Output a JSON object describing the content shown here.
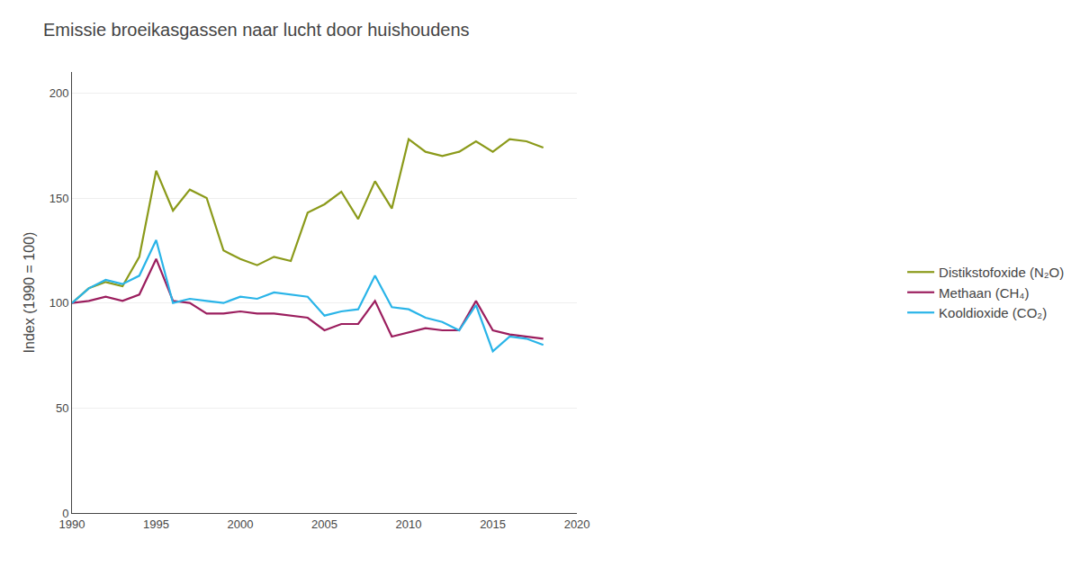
{
  "chart_data": {
    "type": "line",
    "title": "Emissie broeikasgassen naar lucht door huishoudens",
    "ylabel": "Index (1990 = 100)",
    "x": [
      1990,
      1991,
      1992,
      1993,
      1994,
      1995,
      1996,
      1997,
      1998,
      1999,
      2000,
      2001,
      2002,
      2003,
      2004,
      2005,
      2006,
      2007,
      2008,
      2009,
      2010,
      2011,
      2012,
      2013,
      2014,
      2015,
      2016,
      2017,
      2018
    ],
    "series": [
      {
        "name": "Distikstofoxide (N₂O)",
        "color": "#8b9a1a",
        "values": [
          100,
          107,
          110,
          108,
          122,
          163,
          144,
          154,
          150,
          125,
          121,
          118,
          122,
          120,
          143,
          147,
          153,
          140,
          158,
          145,
          178,
          172,
          170,
          172,
          177,
          172,
          178,
          177,
          174
        ]
      },
      {
        "name": "Methaan (CH₄)",
        "color": "#9b1e5e",
        "values": [
          100,
          101,
          103,
          101,
          104,
          121,
          101,
          100,
          95,
          95,
          96,
          95,
          95,
          94,
          93,
          87,
          90,
          90,
          101,
          84,
          86,
          88,
          87,
          87,
          101,
          87,
          85,
          84,
          83
        ]
      },
      {
        "name": "Kooldioxide (CO₂)",
        "color": "#29b4e8",
        "values": [
          100,
          107,
          111,
          109,
          113,
          130,
          100,
          102,
          101,
          100,
          103,
          102,
          105,
          104,
          103,
          94,
          96,
          97,
          113,
          98,
          97,
          93,
          91,
          87,
          99,
          77,
          84,
          83,
          80
        ]
      }
    ],
    "xlim": [
      1990,
      2020
    ],
    "xticks": [
      1990,
      1995,
      2000,
      2005,
      2010,
      2015,
      2020
    ],
    "ylim": [
      0,
      210
    ],
    "yticks": [
      0,
      50,
      100,
      150,
      200
    ],
    "grid": "y",
    "legend": "right"
  }
}
